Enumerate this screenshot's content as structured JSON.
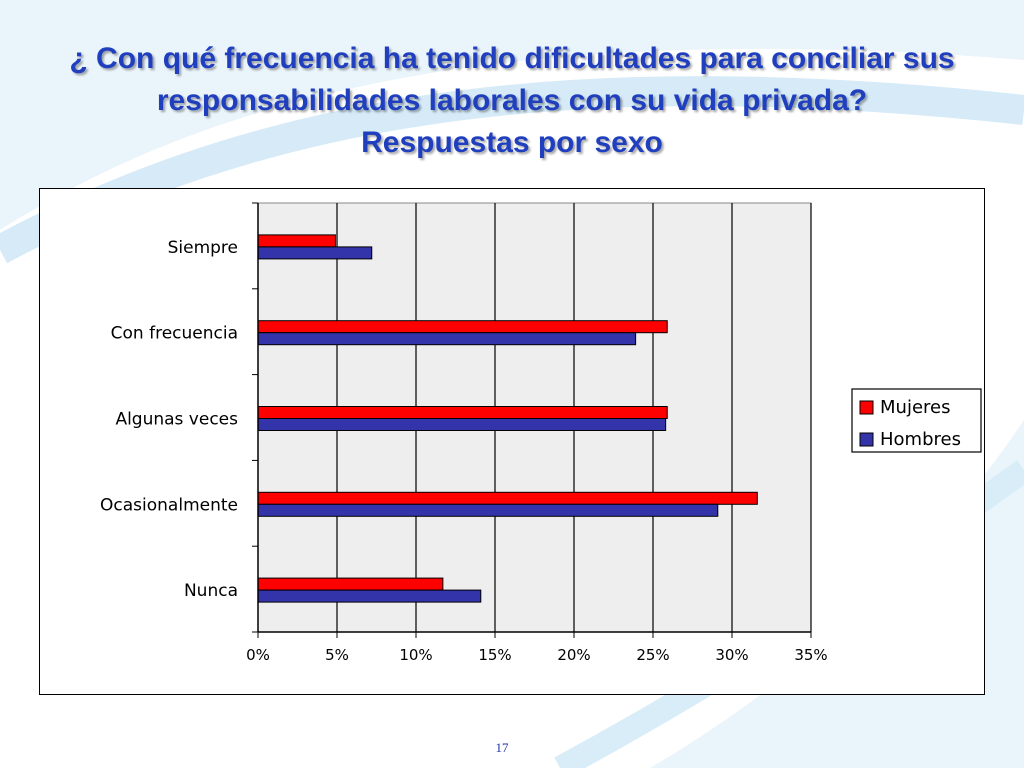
{
  "slide": {
    "title_line1": "¿ Con qué frecuencia ha tenido dificultades para conciliar sus",
    "title_line2": "responsabilidades laborales con su vida privada?",
    "title_line3": "Respuestas por sexo",
    "page_number": "17"
  },
  "colors": {
    "title": "#1f3fbf",
    "mujeres": "#ff0000",
    "hombres": "#3333aa",
    "plot_area": "#eeeeee"
  },
  "chart_data": {
    "type": "bar",
    "orientation": "horizontal",
    "categories": [
      "Siempre",
      "Con frecuencia",
      "Algunas veces",
      "Ocasionalmente",
      "Nunca"
    ],
    "series": [
      {
        "name": "Mujeres",
        "values": [
          4.9,
          25.9,
          25.9,
          31.6,
          11.7
        ]
      },
      {
        "name": "Hombres",
        "values": [
          7.2,
          23.9,
          25.8,
          29.1,
          14.1
        ]
      }
    ],
    "xlim": [
      0,
      35
    ],
    "xticks": [
      "0%",
      "5%",
      "10%",
      "15%",
      "20%",
      "25%",
      "30%",
      "35%"
    ],
    "grid": true,
    "legend_position": "right"
  }
}
